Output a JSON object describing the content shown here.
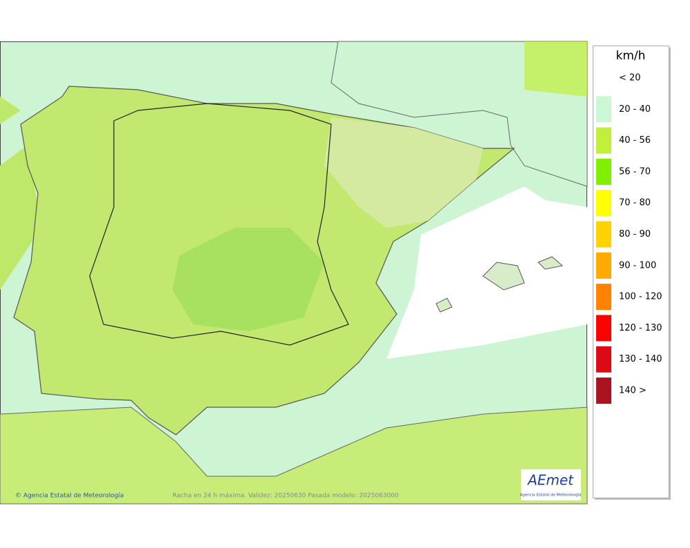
{
  "legend": {
    "title": "km/h",
    "entries": [
      {
        "label": "< 20",
        "color": "#ffffff"
      },
      {
        "label": "20 - 40",
        "color": "#ccf7d4"
      },
      {
        "label": "40 - 56",
        "color": "#c2ee3c"
      },
      {
        "label": "56 - 70",
        "color": "#80f000"
      },
      {
        "label": "70 - 80",
        "color": "#ffff00"
      },
      {
        "label": "80 - 90",
        "color": "#ffd200"
      },
      {
        "label": "90 - 100",
        "color": "#ffaa00"
      },
      {
        "label": "100 - 120",
        "color": "#ff8200"
      },
      {
        "label": "120 - 130",
        "color": "#ff0000"
      },
      {
        "label": "130 - 140",
        "color": "#dc0a14"
      },
      {
        "label": "140 >",
        "color": "#aa1420"
      }
    ]
  },
  "footer": {
    "credit": "© Agencia Estatal de Meteorología",
    "caption": "Racha en 24 h máxima. Validez: 20250630 Pasada modelo: 2025063000"
  },
  "logo": {
    "name": "AEmet",
    "subtitle": "Agencia Estatal de Meteorología"
  }
}
